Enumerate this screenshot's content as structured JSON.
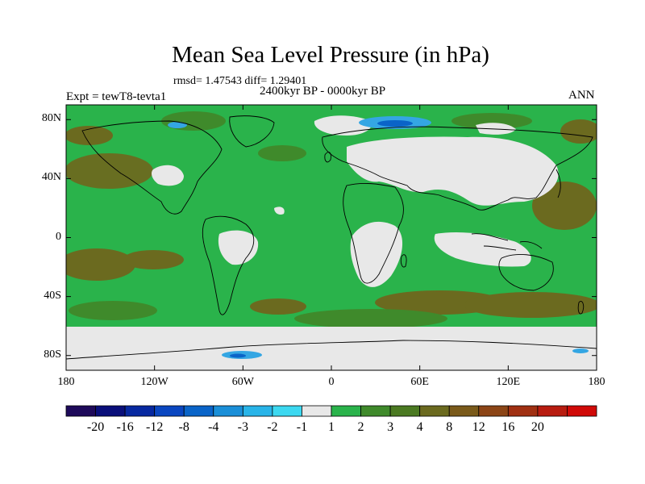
{
  "title": "Mean Sea Level Pressure (in hPa)",
  "stats": "rmsd= 1.47543 diff= 1.29401",
  "period": "2400kyr BP - 0000kyr BP",
  "experiment": "Expt = tewT8-tevta1",
  "season": "ANN",
  "map": {
    "projection": "cylindrical-equidistant",
    "lon_range": [
      -180,
      180
    ],
    "lat_range": [
      -90,
      90
    ],
    "lat_ticks": [
      {
        "value": 80,
        "label": "80N"
      },
      {
        "value": 40,
        "label": "40N"
      },
      {
        "value": 0,
        "label": "0"
      },
      {
        "value": -40,
        "label": "40S"
      },
      {
        "value": -80,
        "label": "80S"
      }
    ],
    "lon_ticks": [
      {
        "value": -180,
        "label": "180"
      },
      {
        "value": -120,
        "label": "120W"
      },
      {
        "value": -60,
        "label": "60W"
      },
      {
        "value": 0,
        "label": "0"
      },
      {
        "value": 60,
        "label": "60E"
      },
      {
        "value": 120,
        "label": "120E"
      },
      {
        "value": 180,
        "label": "180"
      }
    ],
    "dominant_range": "1 to 2 hPa",
    "colors": {
      "background_bin": "#2ab34b",
      "low_bin": "#e8e8e8",
      "mid_bin": "#3f8a2b",
      "high_bin": "#6b6a1f",
      "neg_bin": "#34a6e3",
      "coast": "#000000"
    }
  },
  "colorbar": {
    "colors": [
      "#1e0a5a",
      "#0a0f7a",
      "#0728a0",
      "#0a46c0",
      "#0a64c8",
      "#1a8fd8",
      "#28b4e8",
      "#3cd8f0",
      "#e8e8e8",
      "#2ab34b",
      "#3f8a2b",
      "#4b7a22",
      "#6b6a1f",
      "#7a5a1a",
      "#8c4516",
      "#a03012",
      "#b81c10",
      "#d00a08"
    ],
    "labels": [
      "-20",
      "-16",
      "-12",
      "-8",
      "-4",
      "-3",
      "-2",
      "-1",
      "1",
      "2",
      "3",
      "4",
      "8",
      "12",
      "16",
      "20"
    ]
  }
}
